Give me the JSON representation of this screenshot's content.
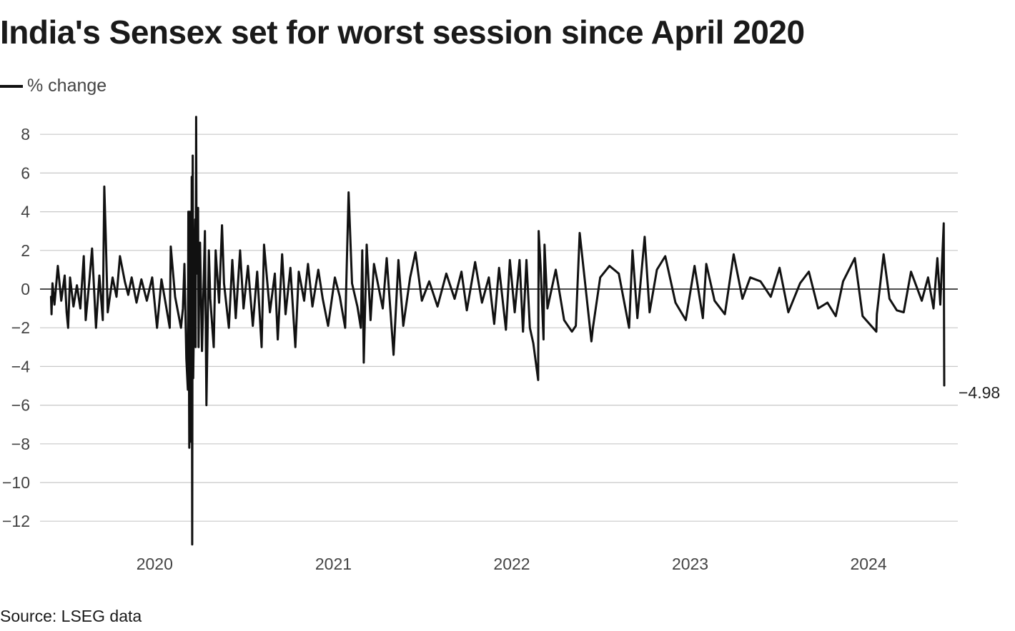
{
  "title": "India's Sensex set for worst session since April 2020",
  "legend": {
    "label": "% change",
    "color": "#111111"
  },
  "source": "Source: LSEG data",
  "chart_data": {
    "type": "line",
    "title": "India's Sensex set for worst session since April 2020",
    "xlabel": "",
    "ylabel": "",
    "series": [
      {
        "name": "% change",
        "color": "#111111",
        "points": [
          [
            "2019-06-03",
            -0.4
          ],
          [
            "2019-06-04",
            -1.3
          ],
          [
            "2019-06-06",
            0.3
          ],
          [
            "2019-06-10",
            -0.8
          ],
          [
            "2019-06-17",
            1.2
          ],
          [
            "2019-06-24",
            -0.6
          ],
          [
            "2019-07-01",
            0.7
          ],
          [
            "2019-07-05",
            -1.2
          ],
          [
            "2019-07-08",
            -2.0
          ],
          [
            "2019-07-12",
            0.6
          ],
          [
            "2019-07-19",
            -0.9
          ],
          [
            "2019-07-26",
            0.2
          ],
          [
            "2019-08-02",
            -1.0
          ],
          [
            "2019-08-09",
            1.7
          ],
          [
            "2019-08-13",
            -1.6
          ],
          [
            "2019-08-20",
            0.3
          ],
          [
            "2019-08-26",
            2.1
          ],
          [
            "2019-09-03",
            -2.0
          ],
          [
            "2019-09-10",
            0.7
          ],
          [
            "2019-09-17",
            -1.6
          ],
          [
            "2019-09-20",
            5.3
          ],
          [
            "2019-09-23",
            2.8
          ],
          [
            "2019-09-27",
            -1.2
          ],
          [
            "2019-10-07",
            0.6
          ],
          [
            "2019-10-15",
            -0.4
          ],
          [
            "2019-10-22",
            1.7
          ],
          [
            "2019-11-01",
            0.4
          ],
          [
            "2019-11-08",
            -0.3
          ],
          [
            "2019-11-15",
            0.6
          ],
          [
            "2019-11-25",
            -0.7
          ],
          [
            "2019-12-05",
            0.5
          ],
          [
            "2019-12-16",
            -0.6
          ],
          [
            "2019-12-27",
            0.6
          ],
          [
            "2020-01-06",
            -2.0
          ],
          [
            "2020-01-15",
            0.5
          ],
          [
            "2020-01-24",
            -0.8
          ],
          [
            "2020-02-01",
            -2.0
          ],
          [
            "2020-02-03",
            2.2
          ],
          [
            "2020-02-12",
            -0.4
          ],
          [
            "2020-02-24",
            -2.0
          ],
          [
            "2020-02-28",
            -1.0
          ],
          [
            "2020-03-02",
            1.3
          ],
          [
            "2020-03-06",
            -3.6
          ],
          [
            "2020-03-09",
            -5.2
          ],
          [
            "2020-03-10",
            4.0
          ],
          [
            "2020-03-12",
            -8.2
          ],
          [
            "2020-03-13",
            4.0
          ],
          [
            "2020-03-16",
            -7.9
          ],
          [
            "2020-03-17",
            5.8
          ],
          [
            "2020-03-18",
            -13.2
          ],
          [
            "2020-03-19",
            6.9
          ],
          [
            "2020-03-20",
            -4.6
          ],
          [
            "2020-03-24",
            3.6
          ],
          [
            "2020-03-25",
            -3.0
          ],
          [
            "2020-03-26",
            8.9
          ],
          [
            "2020-03-27",
            0.8
          ],
          [
            "2020-03-30",
            4.2
          ],
          [
            "2020-03-31",
            -3.0
          ],
          [
            "2020-04-01",
            -0.6
          ],
          [
            "2020-04-03",
            2.4
          ],
          [
            "2020-04-07",
            -3.2
          ],
          [
            "2020-04-13",
            3.0
          ],
          [
            "2020-04-16",
            -6.0
          ],
          [
            "2020-04-21",
            2.0
          ],
          [
            "2020-04-24",
            -0.5
          ],
          [
            "2020-05-01",
            -3.0
          ],
          [
            "2020-05-05",
            2.0
          ],
          [
            "2020-05-12",
            -0.7
          ],
          [
            "2020-05-18",
            3.3
          ],
          [
            "2020-05-22",
            0.3
          ],
          [
            "2020-06-01",
            -2.0
          ],
          [
            "2020-06-08",
            1.5
          ],
          [
            "2020-06-15",
            -1.5
          ],
          [
            "2020-06-24",
            2.0
          ],
          [
            "2020-07-01",
            -1.0
          ],
          [
            "2020-07-10",
            1.2
          ],
          [
            "2020-07-20",
            -1.9
          ],
          [
            "2020-07-29",
            0.9
          ],
          [
            "2020-08-07",
            -3.0
          ],
          [
            "2020-08-12",
            2.3
          ],
          [
            "2020-08-24",
            -1.2
          ],
          [
            "2020-09-03",
            0.8
          ],
          [
            "2020-09-09",
            -2.6
          ],
          [
            "2020-09-18",
            1.8
          ],
          [
            "2020-09-25",
            -1.3
          ],
          [
            "2020-10-05",
            1.1
          ],
          [
            "2020-10-15",
            -3.0
          ],
          [
            "2020-10-22",
            0.9
          ],
          [
            "2020-11-02",
            -0.6
          ],
          [
            "2020-11-10",
            1.3
          ],
          [
            "2020-11-19",
            -0.9
          ],
          [
            "2020-12-01",
            1.0
          ],
          [
            "2020-12-10",
            -0.5
          ],
          [
            "2020-12-21",
            -1.9
          ],
          [
            "2021-01-04",
            0.6
          ],
          [
            "2021-01-14",
            -0.4
          ],
          [
            "2021-01-25",
            -2.0
          ],
          [
            "2021-02-01",
            5.0
          ],
          [
            "2021-02-08",
            0.3
          ],
          [
            "2021-02-19",
            -0.9
          ],
          [
            "2021-02-26",
            -2.0
          ],
          [
            "2021-03-01",
            2.0
          ],
          [
            "2021-03-04",
            -3.8
          ],
          [
            "2021-03-10",
            2.3
          ],
          [
            "2021-03-18",
            -1.6
          ],
          [
            "2021-03-25",
            1.3
          ],
          [
            "2021-04-12",
            -1.0
          ],
          [
            "2021-04-20",
            1.6
          ],
          [
            "2021-05-04",
            -3.4
          ],
          [
            "2021-05-14",
            1.5
          ],
          [
            "2021-05-24",
            -1.9
          ],
          [
            "2021-06-07",
            0.6
          ],
          [
            "2021-06-18",
            1.9
          ],
          [
            "2021-07-01",
            -0.6
          ],
          [
            "2021-07-16",
            0.4
          ],
          [
            "2021-08-02",
            -0.9
          ],
          [
            "2021-08-20",
            0.8
          ],
          [
            "2021-09-06",
            -0.5
          ],
          [
            "2021-09-20",
            0.9
          ],
          [
            "2021-10-01",
            -1.1
          ],
          [
            "2021-10-18",
            1.4
          ],
          [
            "2021-11-01",
            -0.7
          ],
          [
            "2021-11-15",
            0.6
          ],
          [
            "2021-11-26",
            -1.8
          ],
          [
            "2021-12-06",
            1.1
          ],
          [
            "2021-12-20",
            -2.1
          ],
          [
            "2021-12-28",
            1.5
          ],
          [
            "2022-01-07",
            -1.2
          ],
          [
            "2022-01-17",
            1.5
          ],
          [
            "2022-01-24",
            -2.2
          ],
          [
            "2022-01-31",
            1.5
          ],
          [
            "2022-02-07",
            -2.0
          ],
          [
            "2022-02-14",
            -2.8
          ],
          [
            "2022-02-24",
            -4.7
          ],
          [
            "2022-02-25",
            3.0
          ],
          [
            "2022-03-01",
            1.2
          ],
          [
            "2022-03-07",
            -2.6
          ],
          [
            "2022-03-09",
            2.3
          ],
          [
            "2022-03-15",
            -1.0
          ],
          [
            "2022-04-01",
            1.0
          ],
          [
            "2022-04-18",
            -1.6
          ],
          [
            "2022-05-04",
            -2.2
          ],
          [
            "2022-05-12",
            -1.9
          ],
          [
            "2022-05-20",
            2.9
          ],
          [
            "2022-06-13",
            -2.7
          ],
          [
            "2022-06-16",
            -2.0
          ],
          [
            "2022-07-01",
            0.6
          ],
          [
            "2022-07-20",
            1.2
          ],
          [
            "2022-08-08",
            0.8
          ],
          [
            "2022-08-29",
            -2.0
          ],
          [
            "2022-09-05",
            2.0
          ],
          [
            "2022-09-15",
            -1.5
          ],
          [
            "2022-09-30",
            2.7
          ],
          [
            "2022-10-10",
            -1.2
          ],
          [
            "2022-10-25",
            1.0
          ],
          [
            "2022-11-11",
            1.7
          ],
          [
            "2022-12-02",
            -0.7
          ],
          [
            "2022-12-23",
            -1.6
          ],
          [
            "2023-01-10",
            1.2
          ],
          [
            "2023-01-27",
            -1.5
          ],
          [
            "2023-02-03",
            1.3
          ],
          [
            "2023-02-20",
            -0.6
          ],
          [
            "2023-03-13",
            -1.3
          ],
          [
            "2023-03-31",
            1.8
          ],
          [
            "2023-04-18",
            -0.5
          ],
          [
            "2023-05-04",
            0.6
          ],
          [
            "2023-05-25",
            0.4
          ],
          [
            "2023-06-15",
            -0.4
          ],
          [
            "2023-07-03",
            1.1
          ],
          [
            "2023-07-21",
            -1.2
          ],
          [
            "2023-08-14",
            0.3
          ],
          [
            "2023-09-01",
            0.9
          ],
          [
            "2023-09-20",
            -1.0
          ],
          [
            "2023-10-09",
            -0.7
          ],
          [
            "2023-10-26",
            -1.4
          ],
          [
            "2023-11-10",
            0.4
          ],
          [
            "2023-12-04",
            1.6
          ],
          [
            "2023-12-20",
            -1.4
          ],
          [
            "2024-01-17",
            -2.2
          ],
          [
            "2024-01-18",
            -1.3
          ],
          [
            "2024-02-01",
            1.8
          ],
          [
            "2024-02-13",
            -0.5
          ],
          [
            "2024-02-28",
            -1.1
          ],
          [
            "2024-03-13",
            -1.2
          ],
          [
            "2024-03-28",
            0.9
          ],
          [
            "2024-04-19",
            -0.6
          ],
          [
            "2024-05-02",
            0.6
          ],
          [
            "2024-05-13",
            -1.0
          ],
          [
            "2024-05-21",
            1.6
          ],
          [
            "2024-05-27",
            -0.8
          ],
          [
            "2024-06-03",
            3.4
          ],
          [
            "2024-06-04",
            -4.98
          ]
        ]
      }
    ],
    "x_ticks": [
      "2020",
      "2021",
      "2022",
      "2023",
      "2024"
    ],
    "y_ticks": [
      8,
      6,
      4,
      2,
      0,
      -2,
      -4,
      -6,
      -8,
      -10,
      -12
    ],
    "x_range": [
      "2019-06-01",
      "2024-06-04"
    ],
    "ylim": [
      -13.2,
      8.9
    ],
    "grid": true,
    "annotations": [
      {
        "text": "−4.98"
      }
    ],
    "legend_position": "top-left"
  }
}
